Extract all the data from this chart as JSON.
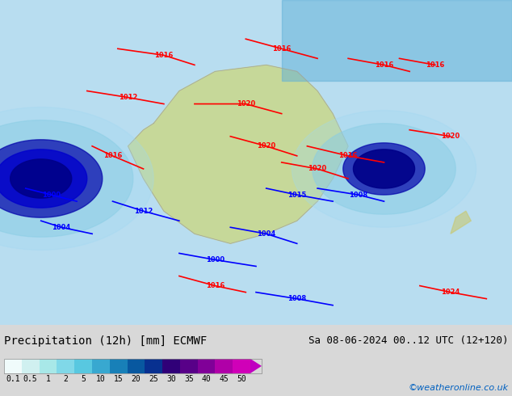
{
  "title_left": "Precipitation (12h) [mm] ECMWF",
  "title_right": "Sa 08-06-2024 00..12 UTC (12+120)",
  "credit": "©weatheronline.co.uk",
  "colorbar_values": [
    0.1,
    0.5,
    1,
    2,
    5,
    10,
    15,
    20,
    25,
    30,
    35,
    40,
    45,
    50
  ],
  "colorbar_labels": [
    "0.1",
    "0.5",
    "1",
    "2",
    "5",
    "10",
    "15",
    "20",
    "25",
    "30",
    "35",
    "40",
    "45",
    "50"
  ],
  "colorbar_colors": [
    "#e0f8f8",
    "#c0f0f0",
    "#a0e8e8",
    "#80d8e8",
    "#60c8e0",
    "#40a8d8",
    "#2088c8",
    "#1060b0",
    "#083898",
    "#400080",
    "#600090",
    "#8800a0",
    "#b000b0",
    "#d000c0",
    "#e800d0"
  ],
  "bg_color": "#d8d8d8",
  "map_bg": "#c8e8f8",
  "fig_width": 6.34,
  "fig_height": 4.9,
  "dpi": 100
}
